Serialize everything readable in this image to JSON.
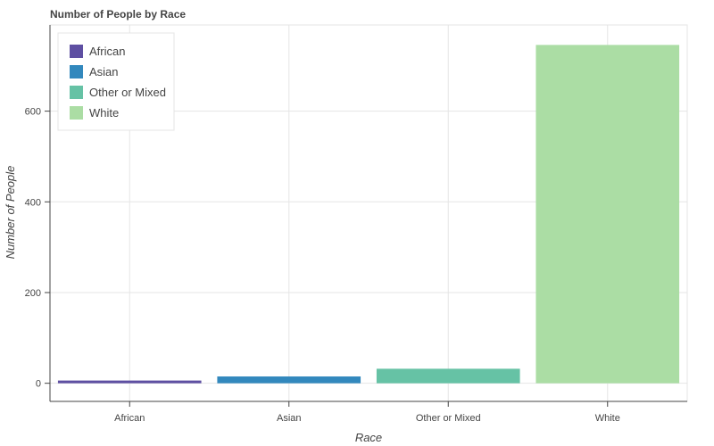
{
  "chart_data": {
    "type": "bar",
    "title": "Number of People by Race",
    "xlabel": "Race",
    "ylabel": "Number of People",
    "categories": [
      "African",
      "Asian",
      "Other or Mixed",
      "White"
    ],
    "values": [
      6,
      15,
      32,
      746
    ],
    "colors": [
      "#5e4fa2",
      "#3288bd",
      "#66c2a5",
      "#abdda4"
    ],
    "ylim": [
      -40,
      790
    ],
    "yticks": [
      0,
      200,
      400,
      600
    ],
    "grid": true,
    "legend": {
      "position": "top-left",
      "entries": [
        "African",
        "Asian",
        "Other or Mixed",
        "White"
      ]
    }
  }
}
